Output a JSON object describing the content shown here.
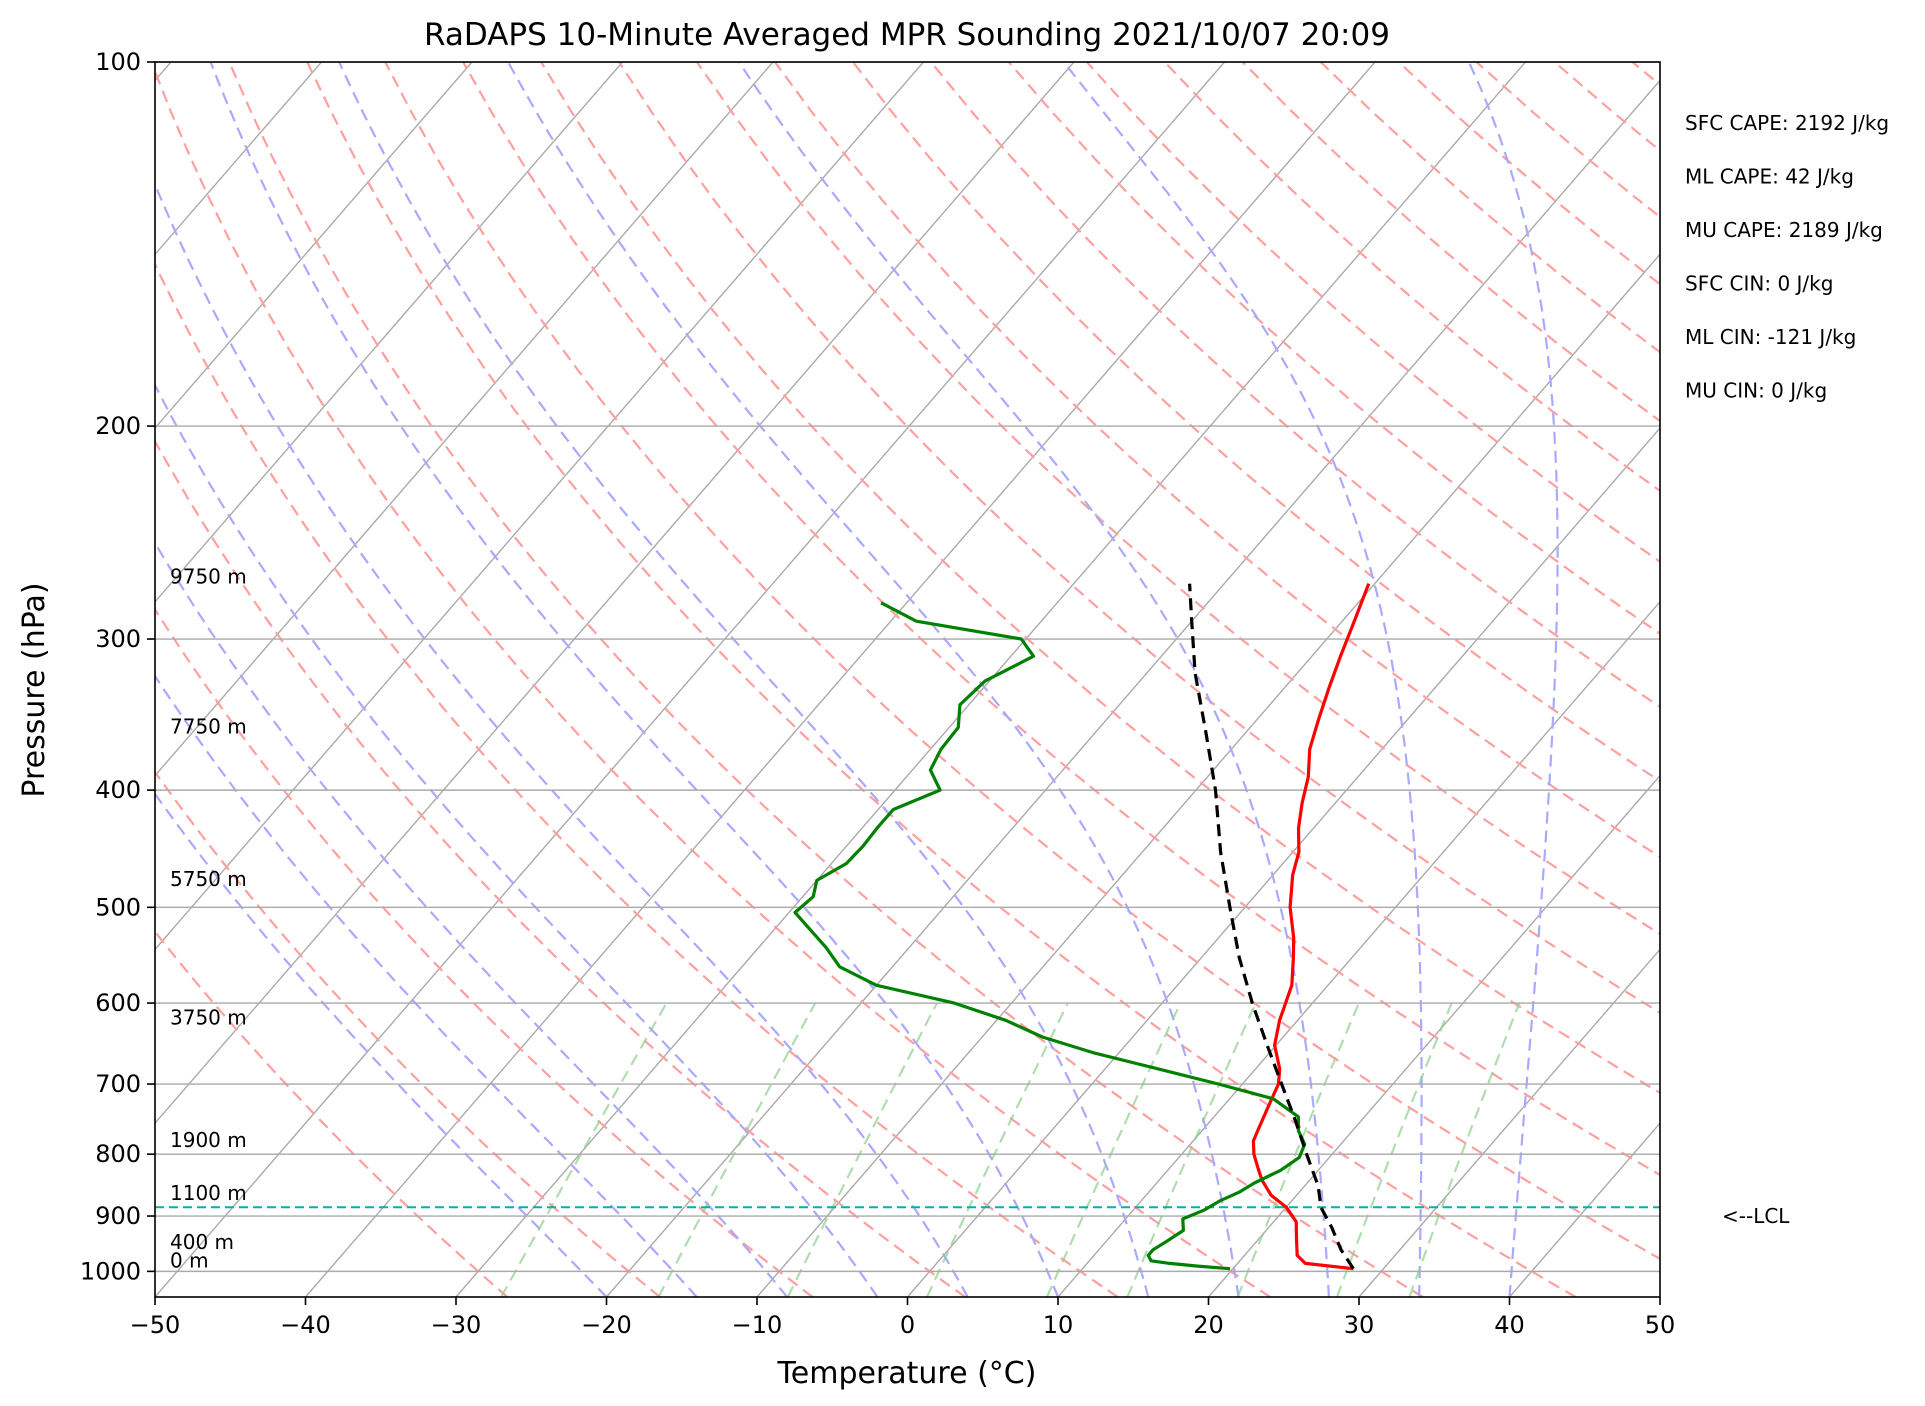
{
  "chart_data": {
    "type": "line",
    "title": "RaDAPS 10-Minute Averaged MPR Sounding 2021/10/07 20:09",
    "xlabel": "Temperature (°C)",
    "ylabel": "Pressure (hPa)",
    "xlim": [
      -50,
      50
    ],
    "ylim": [
      1050,
      100
    ],
    "log_pressure": true,
    "skew_t": true,
    "grid": true,
    "x_ticks": [
      -50,
      -40,
      -30,
      -20,
      -10,
      0,
      10,
      20,
      30,
      40,
      50
    ],
    "x_tick_labels": [
      "−50",
      "−40",
      "−30",
      "−20",
      "−10",
      "0",
      "10",
      "20",
      "30",
      "40",
      "50"
    ],
    "y_ticks": [
      100,
      200,
      300,
      400,
      500,
      600,
      700,
      800,
      900,
      1000
    ],
    "y_tick_labels": [
      "100",
      "200",
      "300",
      "400",
      "500",
      "600",
      "700",
      "800",
      "900",
      "1000"
    ],
    "series": [
      {
        "kind": "temperature",
        "color": "#ff0000",
        "points": [
          [
            995,
            28.0
          ],
          [
            985,
            24.5
          ],
          [
            970,
            23.5
          ],
          [
            940,
            22.5
          ],
          [
            910,
            21.5
          ],
          [
            885,
            20.0
          ],
          [
            865,
            18.3
          ],
          [
            840,
            16.8
          ],
          [
            820,
            15.8
          ],
          [
            800,
            14.8
          ],
          [
            780,
            14.0
          ],
          [
            760,
            13.6
          ],
          [
            730,
            13.0
          ],
          [
            700,
            12.4
          ],
          [
            680,
            11.6
          ],
          [
            650,
            9.9
          ],
          [
            620,
            8.8
          ],
          [
            580,
            7.6
          ],
          [
            550,
            6.1
          ],
          [
            530,
            5.0
          ],
          [
            500,
            3.0
          ],
          [
            470,
            1.3
          ],
          [
            450,
            0.4
          ],
          [
            430,
            -1.0
          ],
          [
            410,
            -2.2
          ],
          [
            390,
            -3.3
          ],
          [
            370,
            -4.8
          ],
          [
            350,
            -5.9
          ],
          [
            330,
            -7.0
          ],
          [
            310,
            -8.1
          ],
          [
            290,
            -9.2
          ],
          [
            270,
            -10.4
          ]
        ]
      },
      {
        "kind": "dewpoint",
        "color": "#008000",
        "points": [
          [
            995,
            19.8
          ],
          [
            990,
            17.5
          ],
          [
            985,
            15.5
          ],
          [
            980,
            14.1
          ],
          [
            970,
            13.6
          ],
          [
            960,
            13.6
          ],
          [
            945,
            14.0
          ],
          [
            925,
            14.5
          ],
          [
            905,
            13.8
          ],
          [
            890,
            14.7
          ],
          [
            875,
            15.2
          ],
          [
            860,
            16.0
          ],
          [
            845,
            16.5
          ],
          [
            825,
            17.5
          ],
          [
            805,
            18.0
          ],
          [
            785,
            17.6
          ],
          [
            765,
            16.4
          ],
          [
            745,
            15.6
          ],
          [
            720,
            12.9
          ],
          [
            700,
            8.4
          ],
          [
            680,
            3.5
          ],
          [
            660,
            -1.6
          ],
          [
            640,
            -6.0
          ],
          [
            620,
            -9.4
          ],
          [
            600,
            -13.8
          ],
          [
            580,
            -20.0
          ],
          [
            560,
            -23.5
          ],
          [
            540,
            -25.5
          ],
          [
            520,
            -27.8
          ],
          [
            505,
            -29.6
          ],
          [
            490,
            -29.3
          ],
          [
            475,
            -30.0
          ],
          [
            460,
            -29.0
          ],
          [
            445,
            -28.9
          ],
          [
            430,
            -29.0
          ],
          [
            415,
            -29.0
          ],
          [
            400,
            -27.0
          ],
          [
            385,
            -28.8
          ],
          [
            370,
            -29.3
          ],
          [
            355,
            -29.4
          ],
          [
            340,
            -30.6
          ],
          [
            325,
            -30.3
          ],
          [
            310,
            -28.5
          ],
          [
            300,
            -30.3
          ],
          [
            290,
            -38.3
          ],
          [
            280,
            -41.7
          ]
        ]
      },
      {
        "kind": "parcel",
        "color": "#000000",
        "dashed": true,
        "points": [
          [
            995,
            28.0
          ],
          [
            960,
            26.1
          ],
          [
            920,
            24.2
          ],
          [
            885,
            22.3
          ],
          [
            850,
            20.9
          ],
          [
            800,
            18.3
          ],
          [
            750,
            15.6
          ],
          [
            700,
            12.6
          ],
          [
            650,
            9.4
          ],
          [
            600,
            6.0
          ],
          [
            550,
            2.5
          ],
          [
            500,
            -1.0
          ],
          [
            450,
            -4.8
          ],
          [
            400,
            -8.7
          ],
          [
            360,
            -12.5
          ],
          [
            320,
            -16.8
          ],
          [
            290,
            -20.0
          ],
          [
            270,
            -22.3
          ]
        ]
      }
    ],
    "lcl": {
      "pressure": 885,
      "label": "<--LCL",
      "color": "#00b0b0"
    },
    "height_labels": [
      {
        "pressure": 1000,
        "label": "0 m"
      },
      {
        "pressure": 966,
        "label": "400 m"
      },
      {
        "pressure": 880,
        "label": "1100 m"
      },
      {
        "pressure": 795,
        "label": "1900 m"
      },
      {
        "pressure": 630,
        "label": "3750 m"
      },
      {
        "pressure": 484,
        "label": "5750 m"
      },
      {
        "pressure": 362,
        "label": "7750 m"
      },
      {
        "pressure": 272,
        "label": "9750 m"
      }
    ],
    "indices": [
      "SFC CAPE: 2192 J/kg",
      "ML CAPE: 42 J/kg",
      "MU CAPE: 2189 J/kg",
      "SFC CIN: 0 J/kg",
      "ML CIN: -121 J/kg",
      "MU CIN: 0 J/kg"
    ],
    "background_lines": {
      "isotherm_color": "#aaaaaa",
      "dry_adiabat_color": "#ff9f9f",
      "moist_adiabat_color": "#a9a9ff",
      "mixing_ratio_color": "#8fcf8f"
    }
  }
}
